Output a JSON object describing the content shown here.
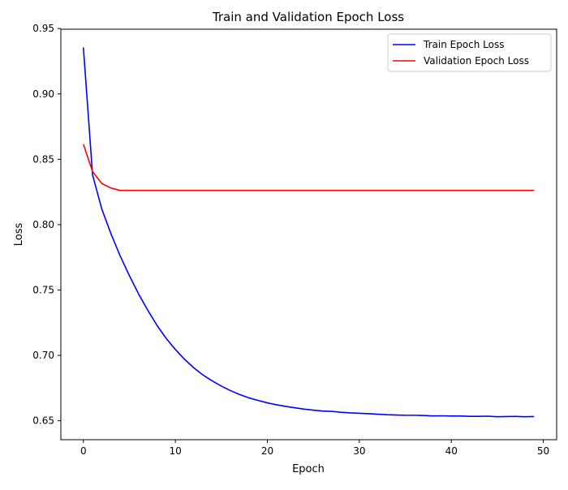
{
  "chart_data": {
    "type": "line",
    "title": "Train and Validation Epoch Loss",
    "xlabel": "Epoch",
    "ylabel": "Loss",
    "xlim": [
      -2.45,
      51.45
    ],
    "ylim": [
      0.6355,
      0.9495
    ],
    "xticks": [
      0,
      10,
      20,
      30,
      40,
      50
    ],
    "yticks": [
      0.65,
      0.7,
      0.75,
      0.8,
      0.85,
      0.9,
      0.95
    ],
    "xtick_labels": [
      "0",
      "10",
      "20",
      "30",
      "40",
      "50"
    ],
    "ytick_labels": [
      "0.65",
      "0.70",
      "0.75",
      "0.80",
      "0.85",
      "0.90",
      "0.95"
    ],
    "grid": false,
    "legend_position": "upper right",
    "x": [
      0,
      1,
      2,
      3,
      4,
      5,
      6,
      7,
      8,
      9,
      10,
      11,
      12,
      13,
      14,
      15,
      16,
      17,
      18,
      19,
      20,
      21,
      22,
      23,
      24,
      25,
      26,
      27,
      28,
      29,
      30,
      31,
      32,
      33,
      34,
      35,
      36,
      37,
      38,
      39,
      40,
      41,
      42,
      43,
      44,
      45,
      46,
      47,
      48,
      49
    ],
    "series": [
      {
        "name": "Train Epoch Loss",
        "color": "#0000ff",
        "values": [
          0.9355,
          0.838,
          0.812,
          0.793,
          0.776,
          0.761,
          0.747,
          0.7345,
          0.723,
          0.713,
          0.7045,
          0.697,
          0.6905,
          0.685,
          0.6805,
          0.6765,
          0.673,
          0.67,
          0.6675,
          0.6655,
          0.6637,
          0.6622,
          0.661,
          0.6599,
          0.6589,
          0.6581,
          0.6574,
          0.6572,
          0.6565,
          0.656,
          0.6557,
          0.6554,
          0.655,
          0.6546,
          0.6544,
          0.6542,
          0.6542,
          0.654,
          0.6537,
          0.6538,
          0.6536,
          0.6536,
          0.6534,
          0.6534,
          0.6535,
          0.6531,
          0.6532,
          0.6533,
          0.6531,
          0.6532
        ]
      },
      {
        "name": "Validation Epoch Loss",
        "color": "#ff0000",
        "values": [
          0.8615,
          0.8405,
          0.8315,
          0.828,
          0.8262,
          0.8262,
          0.8262,
          0.8262,
          0.8262,
          0.8262,
          0.8262,
          0.8262,
          0.8262,
          0.8262,
          0.8262,
          0.8262,
          0.8262,
          0.8262,
          0.8262,
          0.8262,
          0.8262,
          0.8262,
          0.8262,
          0.8262,
          0.8262,
          0.8262,
          0.8262,
          0.8262,
          0.8262,
          0.8262,
          0.8262,
          0.8262,
          0.8262,
          0.8262,
          0.8262,
          0.8262,
          0.8262,
          0.8262,
          0.8262,
          0.8262,
          0.8262,
          0.8262,
          0.8262,
          0.8262,
          0.8262,
          0.8262,
          0.8262,
          0.8262,
          0.8262,
          0.8262
        ]
      }
    ]
  }
}
